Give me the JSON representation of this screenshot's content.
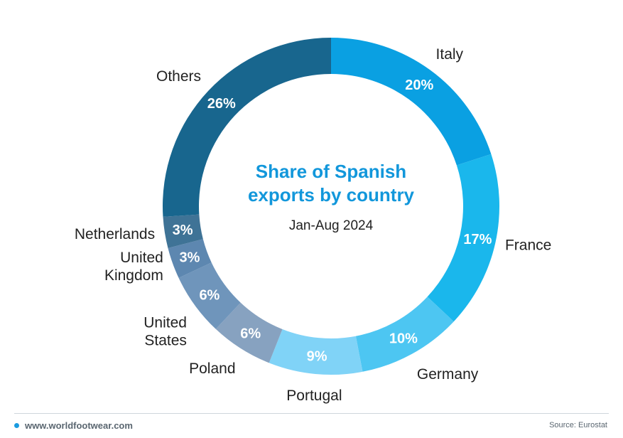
{
  "chart_data": {
    "type": "pie",
    "title": "Share of Spanish exports by country",
    "subtitle": "Jan-Aug 2024",
    "categories": [
      "Italy",
      "France",
      "Germany",
      "Portugal",
      "Poland",
      "United States",
      "United Kingdom",
      "Netherlands",
      "Others"
    ],
    "values": [
      20,
      17,
      10,
      9,
      6,
      6,
      3,
      3,
      26
    ],
    "value_labels": [
      "20%",
      "17%",
      "10%",
      "9%",
      "6%",
      "6%",
      "3%",
      "3%",
      "26%"
    ],
    "category_labels": [
      [
        "Italy"
      ],
      [
        "France"
      ],
      [
        "Germany"
      ],
      [
        "Portugal"
      ],
      [
        "Poland"
      ],
      [
        "United",
        "States"
      ],
      [
        "United",
        "Kingdom"
      ],
      [
        "Netherlands"
      ],
      [
        "Others"
      ]
    ],
    "colors": [
      "#0aa0e2",
      "#1ab7ec",
      "#4dc6f2",
      "#80d3f7",
      "#87a2c0",
      "#6f95bb",
      "#5d87b0",
      "#3f7396",
      "#18668e"
    ]
  },
  "footer": {
    "brand": "www.worldfootwear.com",
    "source": "Source: Eurostat"
  }
}
